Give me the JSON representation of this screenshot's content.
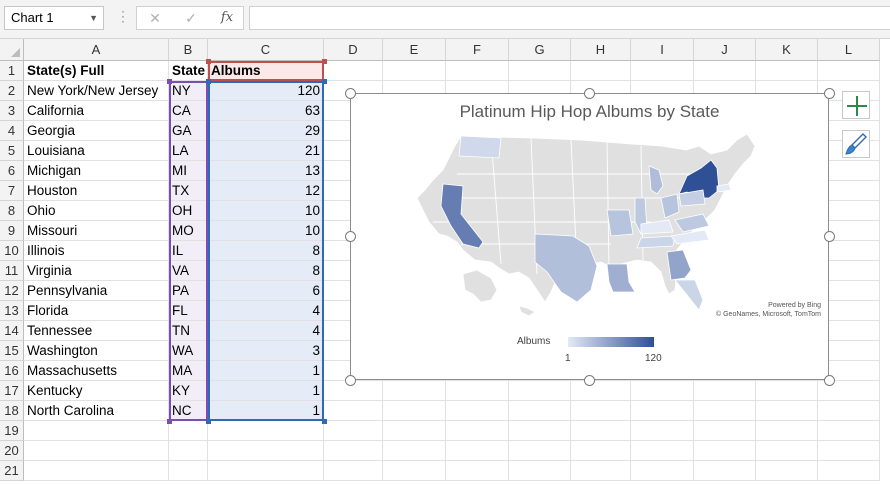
{
  "formula_bar": {
    "name_box": "Chart 1",
    "name_box_dropdown_icon": "chevron-down-icon",
    "more_icon": "vertical-dots-icon",
    "cancel_glyph": "✕",
    "enter_glyph": "✓",
    "fx_label": "fx",
    "formula": ""
  },
  "columns": [
    "A",
    "B",
    "C",
    "D",
    "E",
    "F",
    "G",
    "H",
    "I",
    "J",
    "K",
    "L"
  ],
  "rows": [
    "1",
    "2",
    "3",
    "4",
    "5",
    "6",
    "7",
    "8",
    "9",
    "10",
    "11",
    "12",
    "13",
    "14",
    "15",
    "16",
    "17",
    "18",
    "19",
    "20",
    "21"
  ],
  "table": {
    "headers": [
      "State(s) Full",
      "State",
      "Albums"
    ],
    "records": [
      [
        "New York/New Jersey",
        "NY",
        "120"
      ],
      [
        "California",
        "CA",
        "63"
      ],
      [
        "Georgia",
        "GA",
        "29"
      ],
      [
        "Louisiana",
        "LA",
        "21"
      ],
      [
        "Michigan",
        "MI",
        "13"
      ],
      [
        "Houston",
        "TX",
        "12"
      ],
      [
        "Ohio",
        "OH",
        "10"
      ],
      [
        "Missouri",
        "MO",
        "10"
      ],
      [
        "Illinois",
        "IL",
        "8"
      ],
      [
        "Virginia",
        "VA",
        "8"
      ],
      [
        "Pennsylvania",
        "PA",
        "6"
      ],
      [
        "Florida",
        "FL",
        "4"
      ],
      [
        "Tennessee",
        "TN",
        "4"
      ],
      [
        "Washington",
        "WA",
        "3"
      ],
      [
        "Massachusetts",
        "MA",
        "1"
      ],
      [
        "Kentucky",
        "KY",
        "1"
      ],
      [
        "North Carolina",
        "NC",
        "1"
      ]
    ]
  },
  "chart_data": {
    "type": "map",
    "title": "Platinum Hip Hop Albums by State",
    "legend_title": "Albums",
    "legend_min": "1",
    "legend_max": "120",
    "color_min": "#e3e9f5",
    "color_max": "#2f4f96",
    "credit_line1": "Powered by Bing",
    "credit_line2": "© GeoNames, Microsoft, TomTom",
    "regions": [
      {
        "state": "NY",
        "value": 120
      },
      {
        "state": "CA",
        "value": 63
      },
      {
        "state": "GA",
        "value": 29
      },
      {
        "state": "LA",
        "value": 21
      },
      {
        "state": "MI",
        "value": 13
      },
      {
        "state": "TX",
        "value": 12
      },
      {
        "state": "OH",
        "value": 10
      },
      {
        "state": "MO",
        "value": 10
      },
      {
        "state": "IL",
        "value": 8
      },
      {
        "state": "VA",
        "value": 8
      },
      {
        "state": "PA",
        "value": 6
      },
      {
        "state": "FL",
        "value": 4
      },
      {
        "state": "TN",
        "value": 4
      },
      {
        "state": "WA",
        "value": 3
      },
      {
        "state": "MA",
        "value": 1
      },
      {
        "state": "KY",
        "value": 1
      },
      {
        "state": "NC",
        "value": 1
      }
    ]
  },
  "chart_tools": {
    "elements_button_icon": "plus-icon",
    "styles_button_icon": "paintbrush-icon"
  },
  "colors": {
    "selection_purple": "#7b4fb0",
    "selection_red": "#c0504d",
    "selection_blue": "#2f6ab5",
    "map_gray": "#e0e0e0"
  }
}
